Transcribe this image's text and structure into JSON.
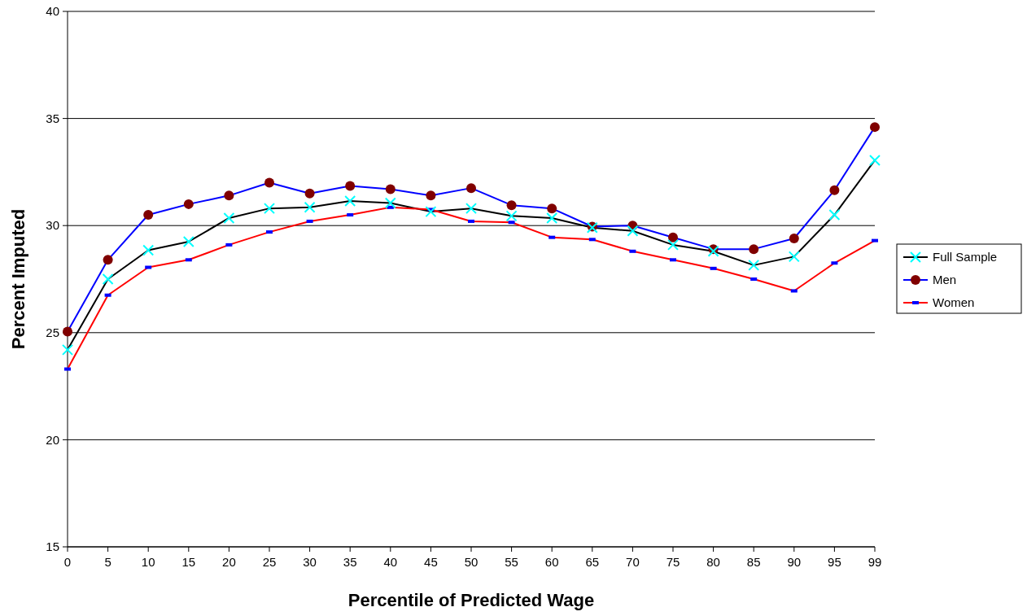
{
  "chart_data": {
    "type": "line",
    "xlabel": "Percentile of Predicted Wage",
    "ylabel": "Percent Imputed",
    "categories": [
      "0",
      "5",
      "10",
      "15",
      "20",
      "25",
      "30",
      "35",
      "40",
      "45",
      "50",
      "55",
      "60",
      "65",
      "70",
      "75",
      "80",
      "85",
      "90",
      "95",
      "99"
    ],
    "series": [
      {
        "name": "Full Sample",
        "color": "#000000",
        "marker": "cross",
        "values": [
          24.2,
          27.5,
          28.85,
          29.25,
          30.35,
          30.8,
          30.85,
          31.15,
          31.05,
          30.65,
          30.8,
          30.45,
          30.35,
          29.9,
          29.75,
          29.1,
          28.8,
          28.15,
          28.55,
          30.5,
          33.05
        ]
      },
      {
        "name": "Men",
        "color": "#0000ff",
        "marker": "circle",
        "values": [
          25.05,
          28.4,
          30.5,
          31.0,
          31.4,
          32.0,
          31.5,
          31.85,
          31.7,
          31.4,
          31.75,
          30.95,
          30.8,
          29.95,
          30.0,
          29.45,
          28.9,
          28.9,
          29.4,
          31.65,
          34.6
        ]
      },
      {
        "name": "Women",
        "color": "#ff0000",
        "marker": "square",
        "values": [
          23.3,
          26.75,
          28.05,
          28.4,
          29.1,
          29.7,
          30.2,
          30.5,
          30.85,
          30.75,
          30.2,
          30.15,
          29.45,
          29.35,
          28.8,
          28.4,
          28.0,
          27.5,
          26.95,
          28.25,
          29.3
        ]
      }
    ],
    "ylim": [
      15,
      40
    ],
    "yticks": [
      15,
      20,
      25,
      30,
      35,
      40
    ],
    "grid": "y",
    "legend": "right"
  }
}
